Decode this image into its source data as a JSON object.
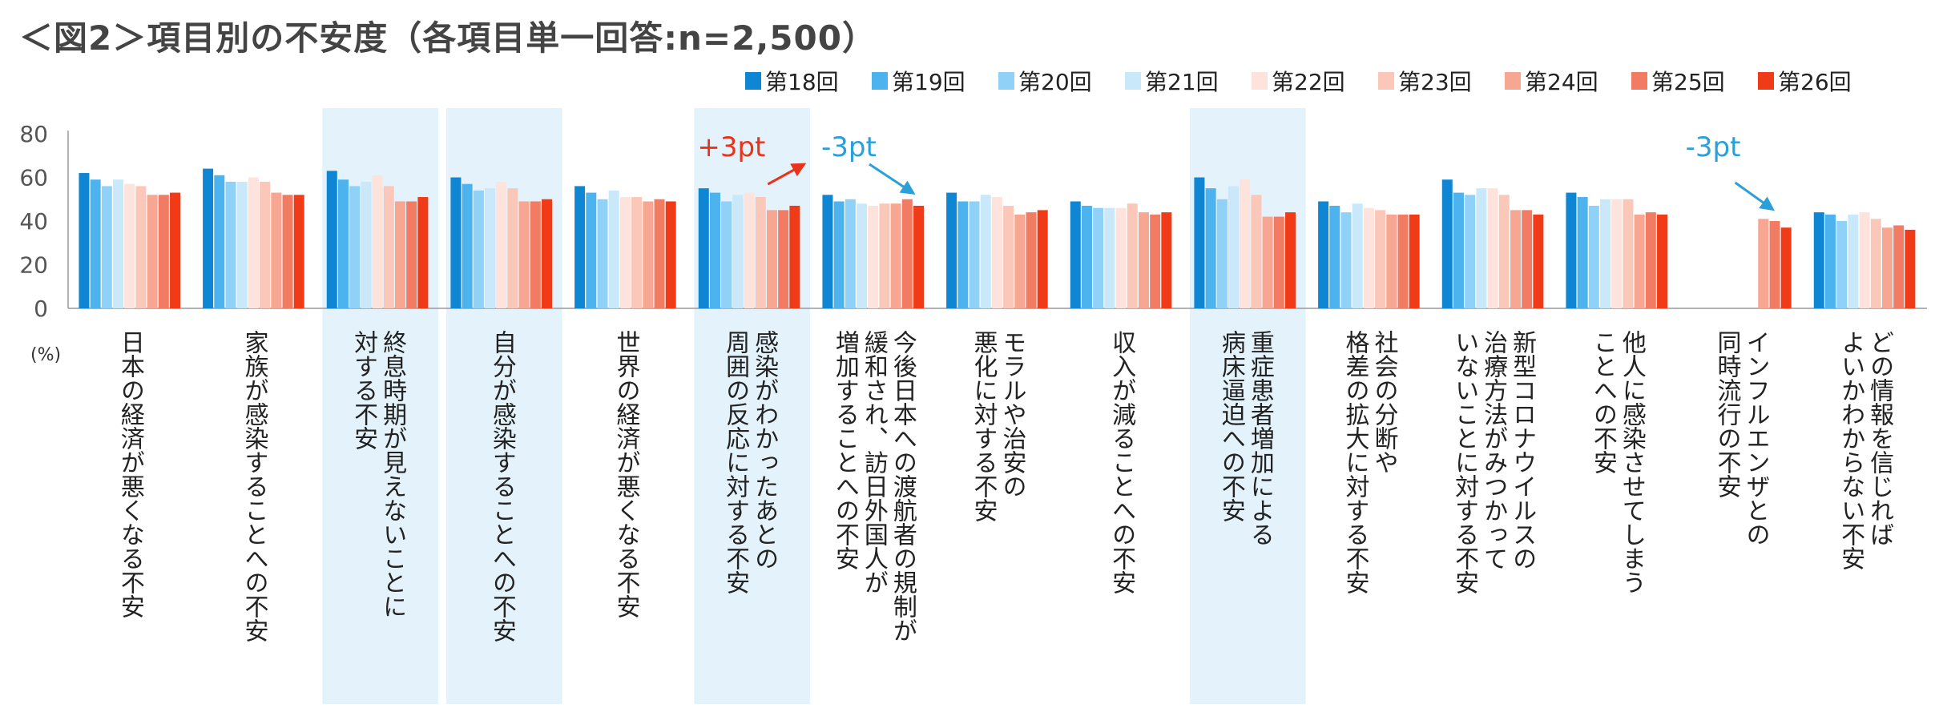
{
  "title": "＜図2＞項目別の不安度（各項目単一回答:n=2,500）",
  "chart_data": {
    "type": "bar",
    "ylim": [
      0,
      80
    ],
    "yticks": [
      0,
      20,
      40,
      60,
      80
    ],
    "unit_label": "(%)",
    "series": [
      {
        "name": "第18回",
        "color": "#0e86d4",
        "values": [
          62,
          64,
          63,
          60,
          56,
          55,
          52,
          53,
          49,
          60,
          49,
          59,
          53,
          null,
          44
        ]
      },
      {
        "name": "第19回",
        "color": "#4db3ef",
        "values": [
          59,
          61,
          59,
          57,
          53,
          53,
          49,
          49,
          47,
          55,
          47,
          53,
          51,
          null,
          43
        ]
      },
      {
        "name": "第20回",
        "color": "#8fd1f7",
        "values": [
          56,
          58,
          56,
          54,
          50,
          49,
          50,
          49,
          46,
          50,
          44,
          52,
          47,
          null,
          40
        ]
      },
      {
        "name": "第21回",
        "color": "#c9e9fb",
        "values": [
          59,
          58,
          58,
          55,
          54,
          52,
          48,
          52,
          46,
          56,
          48,
          55,
          50,
          null,
          43
        ]
      },
      {
        "name": "第22回",
        "color": "#fde3dc",
        "values": [
          57,
          60,
          61,
          58,
          51,
          53,
          47,
          51,
          46,
          59,
          46,
          55,
          50,
          null,
          44
        ]
      },
      {
        "name": "第23回",
        "color": "#fbc7b8",
        "values": [
          56,
          58,
          56,
          55,
          51,
          51,
          48,
          47,
          48,
          52,
          45,
          52,
          50,
          null,
          41
        ]
      },
      {
        "name": "第24回",
        "color": "#f7a691",
        "values": [
          52,
          53,
          49,
          49,
          49,
          45,
          48,
          43,
          44,
          42,
          43,
          45,
          43,
          41,
          37
        ]
      },
      {
        "name": "第25回",
        "color": "#f27b63",
        "values": [
          52,
          52,
          49,
          49,
          50,
          45,
          50,
          44,
          43,
          42,
          43,
          45,
          44,
          40,
          38
        ]
      },
      {
        "name": "第26回",
        "color": "#f03b19",
        "values": [
          53,
          52,
          51,
          50,
          49,
          47,
          47,
          45,
          44,
          44,
          43,
          43,
          43,
          37,
          36
        ]
      }
    ],
    "categories": [
      [
        "日本の経済が悪くなる不安"
      ],
      [
        "家族が感染することへの不安"
      ],
      [
        "終息時期が見えないことに",
        "対する不安"
      ],
      [
        "自分が感染することへの不安"
      ],
      [
        "世界の経済が悪くなる不安"
      ],
      [
        "感染がわかったあとの",
        "周囲の反応に対する不安"
      ],
      [
        "今後日本への渡航者の規制が",
        "緩和され、訪日外国人が",
        "増加することへの不安"
      ],
      [
        "モラルや治安の",
        "悪化に対する不安"
      ],
      [
        "収入が減ることへの不安"
      ],
      [
        "重症患者増加による",
        "病床逼迫への不安"
      ],
      [
        "社会の分断や",
        "格差の拡大に対する不安"
      ],
      [
        "新型コロナウイルスの",
        "治療方法がみつかって",
        "いないことに対する不安"
      ],
      [
        "他人に感染させてしまう",
        "ことへの不安"
      ],
      [
        "インフルエンザとの",
        "同時流行の不安"
      ],
      [
        "どの情報を信じれば",
        "よいかわからない不安"
      ]
    ],
    "highlighted_categories": [
      2,
      3,
      5,
      9
    ],
    "annotations": [
      {
        "text": "+3pt",
        "category": 5,
        "color": "#e8341c"
      },
      {
        "text": "-3pt",
        "category": 6,
        "color": "#2a9fd8"
      },
      {
        "text": "-3pt",
        "category": 13,
        "color": "#2a9fd8"
      }
    ],
    "colors": {
      "highlight": "#e4f3fb",
      "axis": "#999999"
    }
  }
}
